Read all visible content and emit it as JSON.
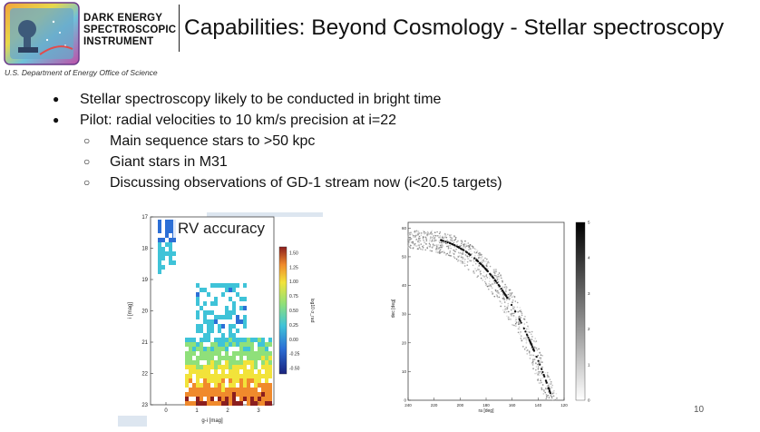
{
  "header": {
    "org_lines": [
      "DARK ENERGY",
      "SPECTROSCOPIC",
      "INSTRUMENT"
    ],
    "title": "Capabilities: Beyond Cosmology - Stellar spectroscopy",
    "department": "U.S. Department of Energy Office of Science"
  },
  "bullets": [
    {
      "level": 1,
      "text": "Stellar spectroscopy likely to be conducted in bright time"
    },
    {
      "level": 1,
      "text": "Pilot: radial velocities to 10 km/s precision at i=22"
    },
    {
      "level": 2,
      "text": "Main sequence stars to >50 kpc"
    },
    {
      "level": 2,
      "text": "Giant stars in M31"
    },
    {
      "level": 2,
      "text": "Discussing observations of GD-1 stream now (i<20.5 targets)"
    }
  ],
  "page_number": "10",
  "chart_data": [
    {
      "type": "heatmap",
      "title": "RV accuracy",
      "xlabel": "g-i [mag]",
      "ylabel": "i [mag]",
      "x_ticks": [
        "0",
        "1",
        "2",
        "3"
      ],
      "y_ticks": [
        "17",
        "18",
        "19",
        "20",
        "21",
        "22",
        "23"
      ],
      "xlim": [
        -0.5,
        3.5
      ],
      "ylim": [
        23,
        17
      ],
      "colorbar_label": "log10 σ_rad",
      "colorbar_ticks": [
        "1.50",
        "1.25",
        "1.00",
        "0.75",
        "0.50",
        "0.25",
        "0.00",
        "-0.25",
        "-0.50"
      ],
      "colorbar_range": [
        -0.6,
        1.6
      ]
    },
    {
      "type": "scatter",
      "xlabel": "ra [deg]",
      "ylabel": "dec [deg]",
      "x_ticks": [
        "240",
        "220",
        "200",
        "180",
        "160",
        "140",
        "120"
      ],
      "y_ticks": [
        "60",
        "50",
        "40",
        "30",
        "20",
        "10",
        "0"
      ],
      "xlim": [
        240,
        120
      ],
      "ylim": [
        0,
        62
      ],
      "colorbar_ticks": [
        "5",
        "4",
        "3",
        "2",
        "1",
        "0"
      ],
      "colorbar_range": [
        0,
        5
      ]
    }
  ]
}
